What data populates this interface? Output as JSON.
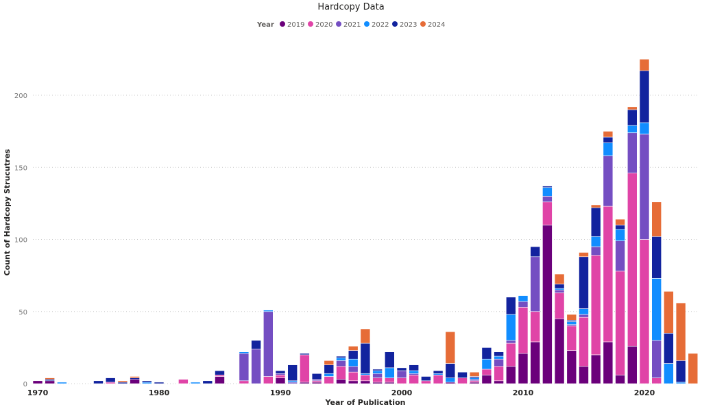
{
  "chart_data": {
    "type": "bar",
    "stacked": true,
    "title": "Hardcopy Data",
    "xlabel": "Year of Publication",
    "ylabel": "Count of Hardcopy Strucutres",
    "legend_title": "Year",
    "legend_position": "top-center",
    "grid": true,
    "ylim": [
      0,
      230
    ],
    "yticks": [
      "0",
      "50",
      "100",
      "150",
      "200"
    ],
    "xticks": [
      "1970",
      "1980",
      "1990",
      "2000",
      "2010",
      "2020"
    ],
    "x_start": 1970,
    "x_end": 2024,
    "series": [
      {
        "name": "2019",
        "color": "#6b007b",
        "values": [
          2,
          2,
          0,
          0,
          0,
          0,
          0,
          0,
          3,
          0,
          0,
          0,
          0,
          0,
          0,
          5,
          0,
          0,
          0,
          0,
          4,
          0,
          1,
          1,
          0,
          3,
          2,
          2,
          1,
          1,
          0,
          0,
          0,
          0,
          1,
          0,
          1,
          6,
          2,
          12,
          21,
          29,
          110,
          45,
          23,
          12,
          20,
          29,
          6,
          26,
          0,
          0,
          0,
          0,
          0
        ]
      },
      {
        "name": "2020",
        "color": "#e044a7",
        "values": [
          0,
          0,
          0,
          0,
          0,
          0,
          1,
          0,
          0,
          0,
          0,
          0,
          3,
          0,
          0,
          1,
          0,
          2,
          0,
          5,
          2,
          0,
          19,
          1,
          5,
          9,
          6,
          4,
          3,
          3,
          4,
          6,
          2,
          6,
          0,
          4,
          1,
          4,
          10,
          16,
          32,
          21,
          16,
          18,
          17,
          34,
          69,
          94,
          72,
          120,
          100,
          4,
          0,
          0,
          0
        ]
      },
      {
        "name": "2021",
        "color": "#744ec2",
        "values": [
          0,
          0,
          0,
          0,
          0,
          0,
          0,
          0,
          0,
          0,
          0,
          0,
          0,
          0,
          0,
          0,
          0,
          19,
          24,
          45,
          1,
          1,
          0,
          1,
          0,
          4,
          4,
          0,
          3,
          0,
          5,
          1,
          0,
          0,
          0,
          0,
          1,
          0,
          5,
          2,
          4,
          38,
          4,
          2,
          1,
          2,
          6,
          35,
          21,
          28,
          73,
          26,
          0,
          0,
          0
        ]
      },
      {
        "name": "2022",
        "color": "#118dff",
        "values": [
          0,
          0,
          1,
          0,
          0,
          0,
          0,
          0,
          0,
          1,
          0,
          0,
          0,
          1,
          0,
          0,
          0,
          1,
          0,
          1,
          0,
          1,
          0,
          0,
          2,
          2,
          5,
          1,
          2,
          7,
          0,
          2,
          0,
          1,
          3,
          0,
          1,
          7,
          2,
          18,
          4,
          0,
          6,
          1,
          2,
          4,
          7,
          9,
          8,
          5,
          8,
          43,
          14,
          1,
          0
        ]
      },
      {
        "name": "2023",
        "color": "#12239e",
        "values": [
          0,
          1,
          0,
          0,
          0,
          2,
          3,
          1,
          1,
          1,
          1,
          0,
          0,
          0,
          2,
          3,
          0,
          0,
          6,
          0,
          2,
          11,
          1,
          4,
          6,
          1,
          6,
          21,
          1,
          11,
          2,
          4,
          3,
          2,
          10,
          4,
          1,
          8,
          3,
          12,
          0,
          7,
          1,
          3,
          1,
          36,
          20,
          4,
          3,
          11,
          36,
          29,
          21,
          15,
          0
        ]
      },
      {
        "name": "2024",
        "color": "#e66c37",
        "values": [
          0,
          1,
          0,
          0,
          0,
          0,
          0,
          1,
          1,
          0,
          0,
          0,
          0,
          0,
          0,
          0,
          0,
          0,
          0,
          0,
          0,
          0,
          0,
          0,
          3,
          0,
          3,
          10,
          0,
          0,
          0,
          0,
          0,
          0,
          22,
          0,
          3,
          0,
          0,
          0,
          0,
          0,
          0,
          7,
          4,
          3,
          2,
          4,
          4,
          2,
          8,
          24,
          29,
          40,
          21
        ]
      }
    ]
  }
}
